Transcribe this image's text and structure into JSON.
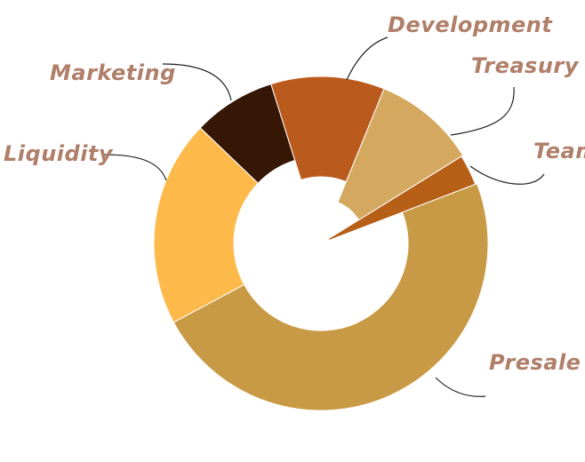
{
  "chart_data": {
    "type": "pie",
    "donut": true,
    "categories": [
      "Presale",
      "Liquidity",
      "Marketing",
      "Development",
      "Treasury",
      "Team"
    ],
    "values": [
      48,
      20,
      8,
      11,
      10,
      3
    ],
    "colors": {
      "Presale": "#c99a45",
      "Liquidity": "#fdb94a",
      "Marketing": "#361604",
      "Development": "#ba5b1d",
      "Treasury": "#d5a85f",
      "Team": "#b65f16"
    },
    "labels": [
      "Presale",
      "Liquidity",
      "Marketing",
      "Development",
      "Treasury",
      "Team"
    ],
    "legend": "none"
  }
}
